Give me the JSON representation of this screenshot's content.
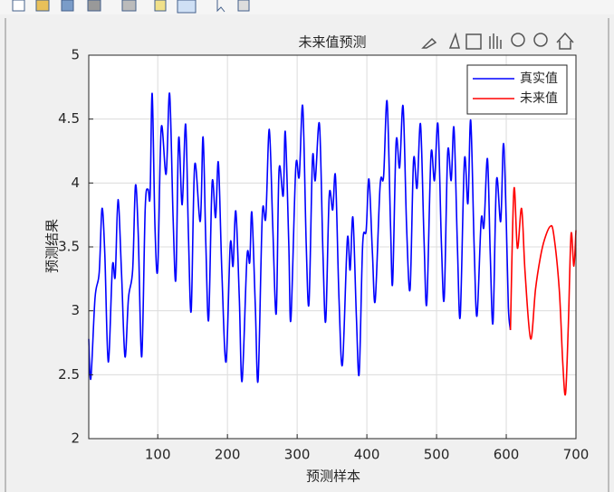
{
  "chart_data": {
    "type": "line",
    "title": "未来值预测",
    "xlabel": "预测样本",
    "ylabel": "预测结果",
    "xlim": [
      1,
      700
    ],
    "ylim": [
      2,
      5
    ],
    "xticks": [
      100,
      200,
      300,
      400,
      500,
      600,
      700
    ],
    "yticks": [
      2,
      2.5,
      3,
      3.5,
      4,
      4.5,
      5
    ],
    "grid": true,
    "legend": "northeast",
    "series": [
      {
        "name": "真实值",
        "color": "#0000ff",
        "x": [
          1,
          4,
          10,
          16,
          20,
          24,
          29,
          35,
          39,
          43,
          48,
          53,
          58,
          64,
          68,
          72,
          77,
          82,
          86,
          89,
          92,
          96,
          100,
          105,
          112,
          117,
          122,
          126,
          130,
          135,
          140,
          144,
          148,
          153,
          161,
          165,
          169,
          173,
          178,
          183,
          187,
          192,
          198,
          204,
          208,
          212,
          217,
          221,
          228,
          232,
          235,
          240,
          244,
          250,
          255,
          260,
          265,
          270,
          274,
          280,
          283,
          288,
          291,
          298,
          303,
          308,
          313,
          317,
          322,
          326,
          332,
          337,
          341,
          346,
          351,
          355,
          360,
          365,
          372,
          376,
          380,
          385,
          389,
          394,
          399,
          403,
          408,
          412,
          419,
          424,
          429,
          434,
          437,
          442,
          447,
          452,
          457,
          462,
          467,
          472,
          477,
          482,
          486,
          492,
          497,
          502,
          507,
          511,
          516,
          521,
          525,
          530,
          534,
          540,
          545,
          549,
          554,
          558,
          564,
          568,
          573,
          577,
          581,
          586,
          592,
          596,
          600,
          603,
          606
        ],
        "values": [
          2.78,
          2.47,
          3.1,
          3.3,
          3.8,
          3.45,
          2.6,
          3.35,
          3.27,
          3.87,
          3.3,
          2.64,
          3.1,
          3.32,
          3.98,
          3.6,
          2.64,
          3.8,
          3.95,
          3.9,
          4.7,
          3.66,
          3.33,
          4.43,
          4.07,
          4.7,
          3.73,
          3.25,
          4.35,
          3.83,
          4.46,
          3.6,
          3.0,
          4.14,
          3.7,
          4.36,
          3.52,
          2.93,
          4.0,
          3.73,
          4.16,
          3.3,
          2.6,
          3.52,
          3.35,
          3.78,
          3.1,
          2.45,
          3.42,
          3.38,
          3.77,
          3.03,
          2.46,
          3.75,
          3.73,
          4.42,
          3.66,
          2.98,
          4.1,
          3.9,
          4.4,
          3.52,
          2.93,
          4.12,
          4.05,
          4.6,
          3.52,
          3.06,
          4.19,
          4.02,
          4.46,
          3.45,
          2.92,
          3.9,
          3.79,
          4.05,
          3.1,
          2.58,
          3.56,
          3.32,
          3.73,
          2.95,
          2.51,
          3.52,
          3.63,
          4.03,
          3.45,
          3.08,
          3.98,
          4.05,
          4.64,
          3.66,
          3.22,
          4.32,
          4.12,
          4.6,
          3.66,
          3.17,
          4.18,
          3.96,
          4.46,
          3.56,
          3.06,
          4.22,
          4.02,
          4.46,
          3.52,
          3.1,
          4.24,
          4.02,
          4.43,
          3.49,
          2.96,
          4.18,
          3.84,
          4.49,
          3.49,
          2.96,
          3.71,
          3.66,
          4.19,
          3.45,
          2.91,
          4.02,
          3.7,
          4.31,
          3.7,
          3.03,
          2.85
        ]
      },
      {
        "name": "未来值",
        "color": "#ff0000",
        "x": [
          606,
          611,
          616,
          622,
          627,
          635,
          642,
          649,
          655,
          663,
          668,
          676,
          681,
          685,
          689,
          693,
          697,
          700
        ],
        "values": [
          2.85,
          3.95,
          3.49,
          3.8,
          3.3,
          2.78,
          3.17,
          3.42,
          3.56,
          3.66,
          3.6,
          3.17,
          2.6,
          2.35,
          2.88,
          3.6,
          3.35,
          3.63
        ]
      }
    ]
  }
}
